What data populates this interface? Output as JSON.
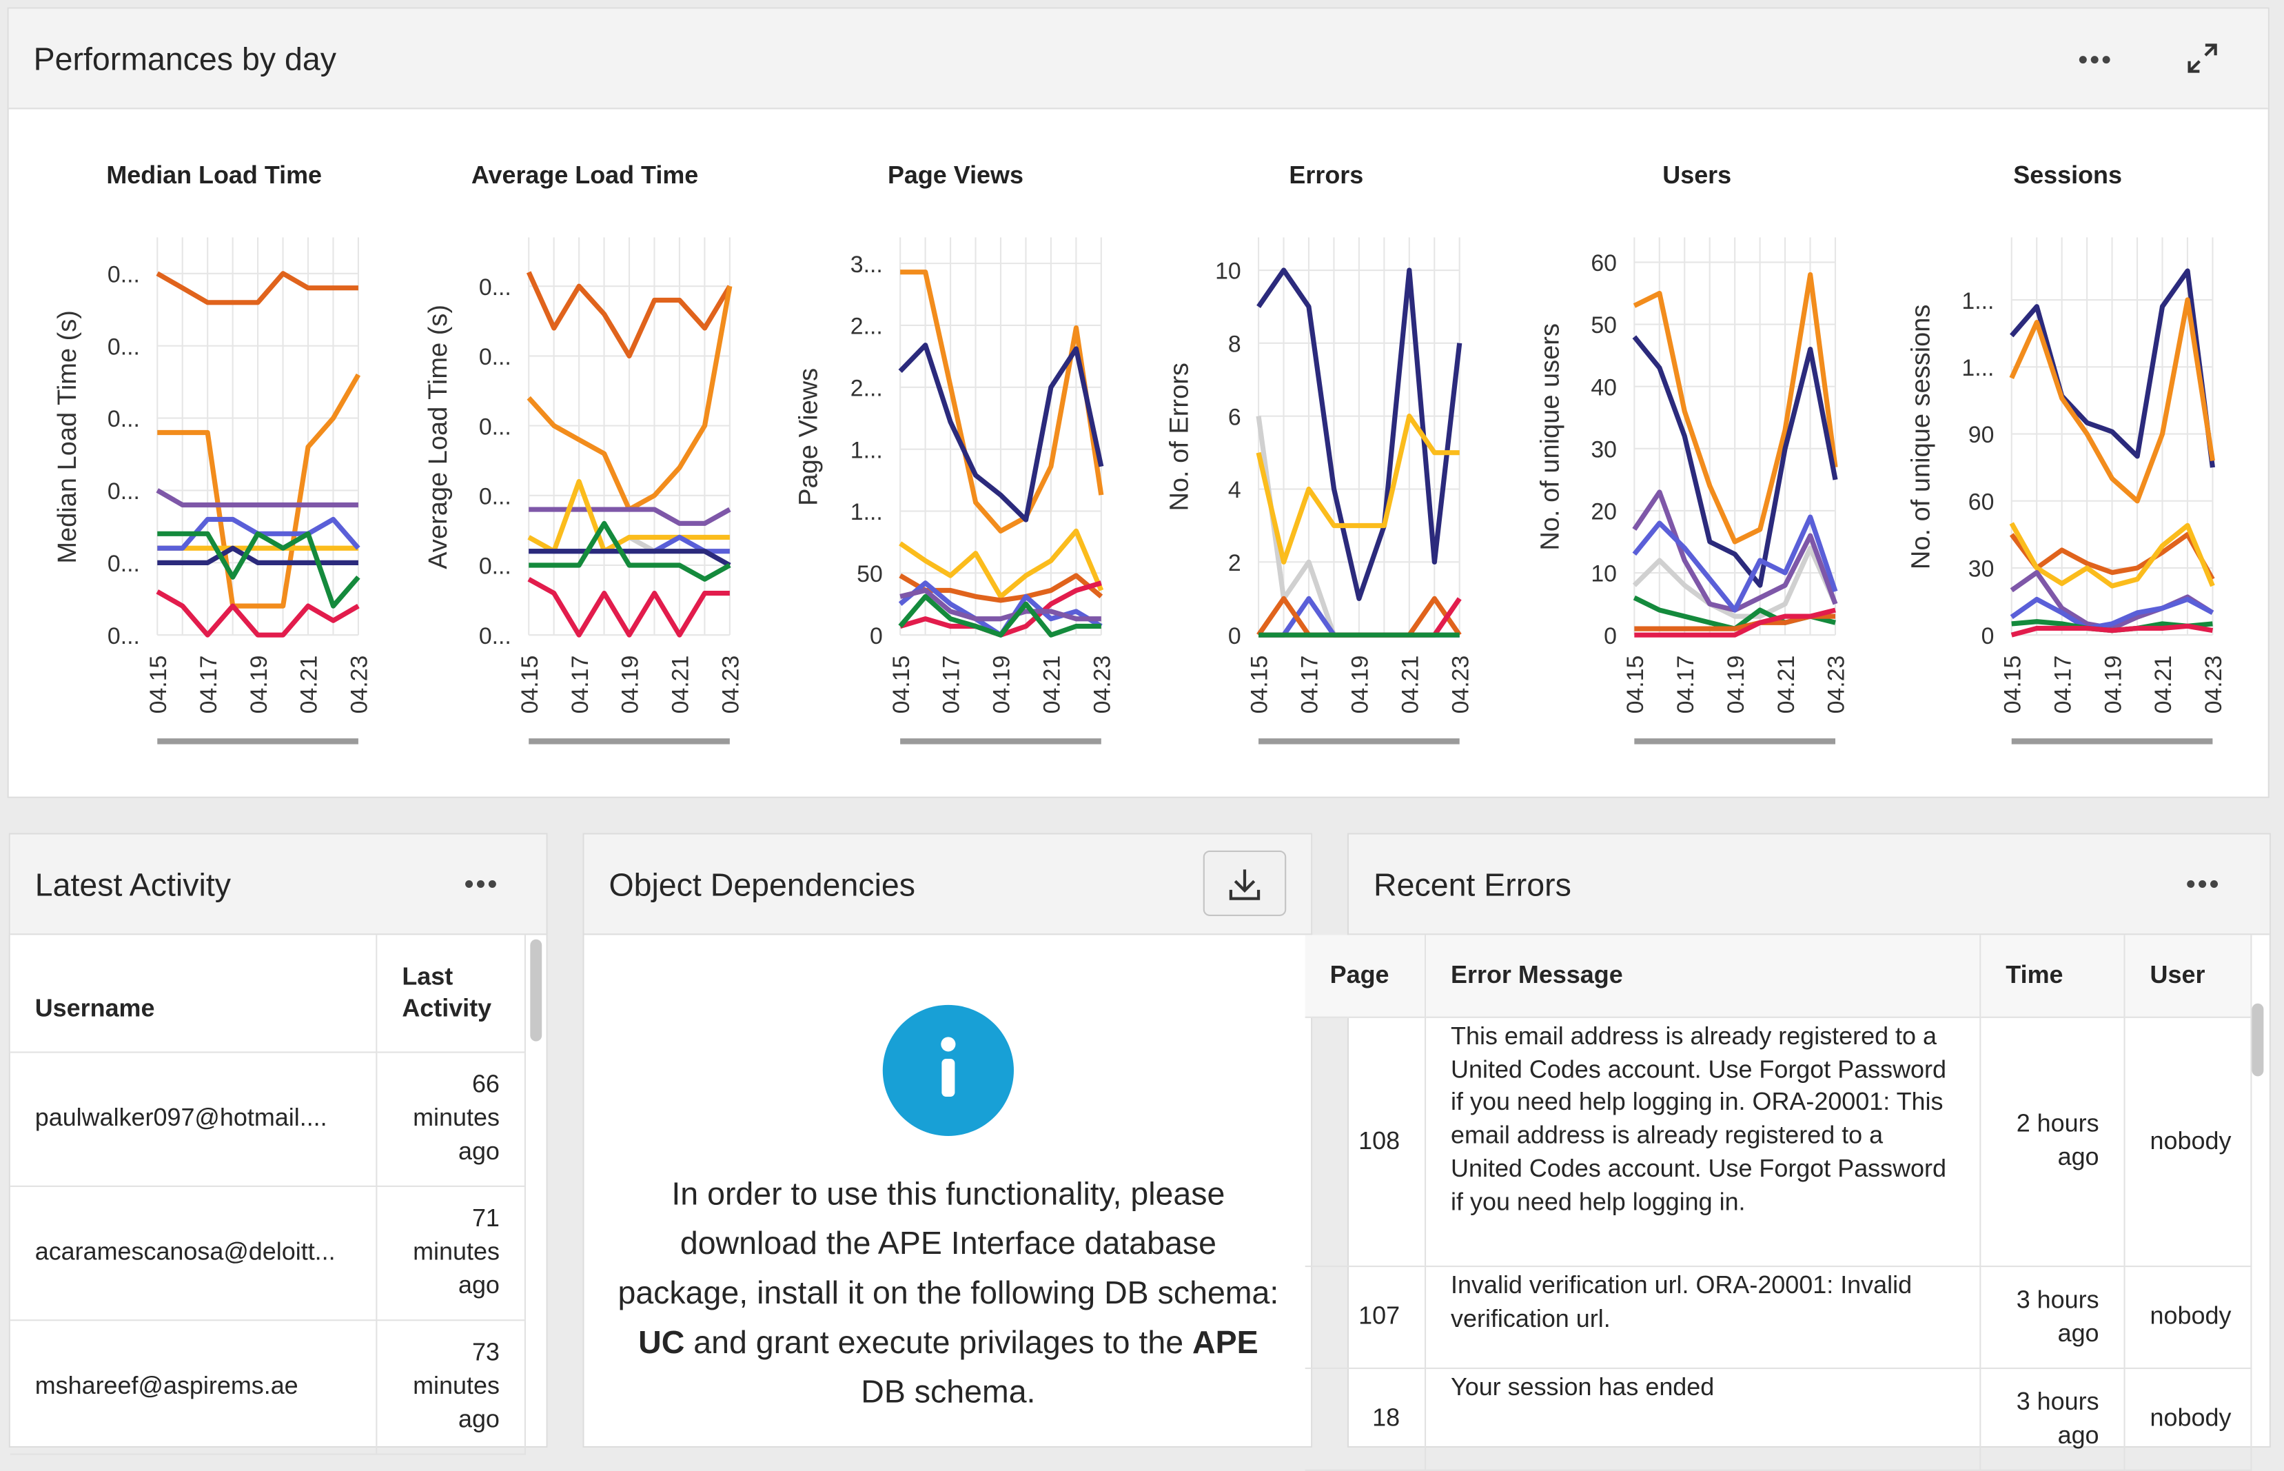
{
  "dashboard_title": "Performances by day",
  "chart_data": [
    {
      "type": "line",
      "title": "Median Load Time",
      "y_label": "Median Load Time (s)",
      "categories": [
        "04.15",
        null,
        "04.17",
        null,
        "04.19",
        null,
        "04.21",
        null,
        "04.23"
      ],
      "ylim": [
        0.1,
        0.65
      ],
      "yticks": [
        {
          "value": 0.1,
          "label": "0..."
        },
        {
          "value": 0.2,
          "label": "0..."
        },
        {
          "value": 0.3,
          "label": "0..."
        },
        {
          "value": 0.4,
          "label": "0..."
        },
        {
          "value": 0.5,
          "label": "0..."
        },
        {
          "value": 0.6,
          "label": "0..."
        }
      ],
      "grid": true,
      "series": [
        {
          "color": "#e0631c",
          "values": [
            0.6,
            0.58,
            0.56,
            0.56,
            0.56,
            0.6,
            0.58,
            0.58,
            0.58
          ]
        },
        {
          "color": "#f28c1c",
          "values": [
            0.38,
            0.38,
            0.38,
            0.14,
            0.14,
            0.14,
            0.36,
            0.4,
            0.46
          ]
        },
        {
          "color": "#7e57a8",
          "values": [
            0.3,
            0.28,
            0.28,
            0.28,
            0.28,
            0.28,
            0.28,
            0.28,
            0.28
          ]
        },
        {
          "color": "#fbbc1c",
          "values": [
            0.22,
            0.22,
            0.22,
            0.22,
            0.22,
            0.22,
            0.22,
            0.22,
            0.22
          ]
        },
        {
          "color": "#5a5fd8",
          "values": [
            0.22,
            0.22,
            0.26,
            0.26,
            0.24,
            0.24,
            0.24,
            0.26,
            0.22
          ]
        },
        {
          "color": "#2b2a7c",
          "values": [
            0.2,
            0.2,
            0.2,
            0.22,
            0.2,
            0.2,
            0.2,
            0.2,
            0.2
          ]
        },
        {
          "color": "#148a3c",
          "values": [
            0.24,
            0.24,
            0.24,
            0.18,
            0.24,
            0.22,
            0.24,
            0.14,
            0.18
          ]
        },
        {
          "color": "#e21c4c",
          "values": [
            0.16,
            0.14,
            0.1,
            0.14,
            0.1,
            0.1,
            0.14,
            0.12,
            0.14
          ]
        }
      ]
    },
    {
      "type": "line",
      "title": "Average Load Time",
      "y_label": "Average Load Time (s)",
      "categories": [
        "04.15",
        null,
        "04.17",
        null,
        "04.19",
        null,
        "04.21",
        null,
        "04.23"
      ],
      "ylim": [
        0.1,
        0.67
      ],
      "yticks": [
        {
          "value": 0.1,
          "label": "0..."
        },
        {
          "value": 0.2,
          "label": "0..."
        },
        {
          "value": 0.3,
          "label": "0..."
        },
        {
          "value": 0.4,
          "label": "0..."
        },
        {
          "value": 0.5,
          "label": "0..."
        },
        {
          "value": 0.6,
          "label": "0..."
        }
      ],
      "grid": true,
      "series": [
        {
          "color": "#d0d0d0",
          "values": [
            0.24,
            0.22,
            0.22,
            0.22,
            0.24,
            0.22,
            0.22,
            0.22,
            0.22
          ]
        },
        {
          "color": "#e0631c",
          "values": [
            0.62,
            0.54,
            0.6,
            0.56,
            0.5,
            0.58,
            0.58,
            0.54,
            0.6
          ]
        },
        {
          "color": "#f28c1c",
          "values": [
            0.44,
            0.4,
            0.38,
            0.36,
            0.28,
            0.3,
            0.34,
            0.4,
            0.6
          ]
        },
        {
          "color": "#7e57a8",
          "values": [
            0.28,
            0.28,
            0.28,
            0.28,
            0.28,
            0.28,
            0.26,
            0.26,
            0.28
          ]
        },
        {
          "color": "#fbbc1c",
          "values": [
            0.24,
            0.22,
            0.32,
            0.22,
            0.24,
            0.24,
            0.24,
            0.24,
            0.24
          ]
        },
        {
          "color": "#5a5fd8",
          "values": [
            0.22,
            0.22,
            0.22,
            0.22,
            0.22,
            0.22,
            0.24,
            0.22,
            0.22
          ]
        },
        {
          "color": "#2b2a7c",
          "values": [
            0.22,
            0.22,
            0.22,
            0.22,
            0.22,
            0.22,
            0.22,
            0.22,
            0.2
          ]
        },
        {
          "color": "#148a3c",
          "values": [
            0.2,
            0.2,
            0.2,
            0.26,
            0.2,
            0.2,
            0.2,
            0.18,
            0.2
          ]
        },
        {
          "color": "#e21c4c",
          "values": [
            0.18,
            0.16,
            0.1,
            0.16,
            0.1,
            0.16,
            0.1,
            0.16,
            0.16
          ]
        }
      ]
    },
    {
      "type": "line",
      "title": "Page Views",
      "y_label": "Page Views",
      "categories": [
        "04.15",
        null,
        "04.17",
        null,
        "04.19",
        null,
        "04.21",
        null,
        "04.23"
      ],
      "ylim": [
        0,
        321
      ],
      "yticks": [
        0,
        50,
        {
          "value": 100,
          "label": "1..."
        },
        {
          "value": 150,
          "label": "1..."
        },
        {
          "value": 200,
          "label": "2..."
        },
        {
          "value": 250,
          "label": "2..."
        },
        {
          "value": 300,
          "label": "3..."
        }
      ],
      "grid": true,
      "series": [
        {
          "color": "#f28c1c",
          "values": [
            293,
            293,
            201,
            107,
            84,
            95,
            136,
            248,
            113
          ]
        },
        {
          "color": "#2b2a7c",
          "values": [
            213,
            234,
            172,
            129,
            113,
            93,
            200,
            231,
            136
          ]
        },
        {
          "color": "#fbbc1c",
          "values": [
            74,
            60,
            48,
            66,
            31,
            48,
            60,
            84,
            36
          ]
        },
        {
          "color": "#e0631c",
          "values": [
            48,
            36,
            36,
            31,
            28,
            31,
            36,
            48,
            31
          ]
        },
        {
          "color": "#e21c4c",
          "values": [
            7,
            13,
            7,
            7,
            0,
            7,
            25,
            36,
            42
          ]
        },
        {
          "color": "#5a5fd8",
          "values": [
            25,
            42,
            25,
            13,
            0,
            31,
            13,
            19,
            7
          ]
        },
        {
          "color": "#7e57a8",
          "values": [
            31,
            36,
            19,
            13,
            13,
            19,
            19,
            13,
            13
          ]
        },
        {
          "color": "#148a3c",
          "values": [
            7,
            31,
            13,
            7,
            0,
            25,
            0,
            7,
            7
          ]
        }
      ]
    },
    {
      "type": "line",
      "title": "Errors",
      "y_label": "No. of Errors",
      "categories": [
        "04.15",
        null,
        "04.17",
        null,
        "04.19",
        null,
        "04.21",
        null,
        "04.23"
      ],
      "ylim": [
        0,
        10.9
      ],
      "yticks": [
        0,
        2,
        4,
        6,
        8,
        10
      ],
      "grid": true,
      "series": [
        {
          "color": "#d0d0d0",
          "values": [
            6,
            1,
            2,
            0,
            0,
            0,
            0,
            0,
            0
          ]
        },
        {
          "color": "#2b2a7c",
          "values": [
            9,
            10,
            9,
            4,
            1,
            3,
            10,
            2,
            8
          ]
        },
        {
          "color": "#fbbc1c",
          "values": [
            5,
            2,
            4,
            3,
            3,
            3,
            6,
            5,
            5
          ]
        },
        {
          "color": "#5a5fd8",
          "values": [
            0,
            0,
            1,
            0,
            0,
            0,
            0,
            0,
            0
          ]
        },
        {
          "color": "#e0631c",
          "values": [
            0,
            1,
            0,
            0,
            0,
            0,
            0,
            1,
            0
          ]
        },
        {
          "color": "#e21c4c",
          "values": [
            0,
            0,
            0,
            0,
            0,
            0,
            0,
            0,
            1
          ]
        },
        {
          "color": "#148a3c",
          "values": [
            0,
            0,
            0,
            0,
            0,
            0,
            0,
            0,
            0
          ]
        }
      ]
    },
    {
      "type": "line",
      "title": "Users",
      "y_label": "No. of unique users",
      "categories": [
        "04.15",
        null,
        "04.17",
        null,
        "04.19",
        null,
        "04.21",
        null,
        "04.23"
      ],
      "ylim": [
        0,
        64
      ],
      "yticks": [
        0,
        10,
        20,
        30,
        40,
        50,
        60
      ],
      "grid": true,
      "series": [
        {
          "color": "#d0d0d0",
          "values": [
            8,
            12,
            8,
            5,
            3,
            3,
            5,
            14,
            5
          ]
        },
        {
          "color": "#f28c1c",
          "values": [
            53,
            55,
            36,
            24,
            15,
            17,
            33,
            58,
            27
          ]
        },
        {
          "color": "#2b2a7c",
          "values": [
            48,
            43,
            32,
            15,
            13,
            8,
            30,
            46,
            25
          ]
        },
        {
          "color": "#7e57a8",
          "values": [
            17,
            23,
            12,
            5,
            4,
            6,
            8,
            16,
            5
          ]
        },
        {
          "color": "#5a5fd8",
          "values": [
            13,
            18,
            14,
            9,
            4,
            12,
            10,
            19,
            7
          ]
        },
        {
          "color": "#148a3c",
          "values": [
            6,
            4,
            3,
            2,
            1,
            4,
            2,
            3,
            2
          ]
        },
        {
          "color": "#e0631c",
          "values": [
            1,
            1,
            1,
            1,
            1,
            2,
            2,
            3,
            3
          ]
        },
        {
          "color": "#e21c4c",
          "values": [
            0,
            0,
            0,
            0,
            0,
            2,
            3,
            3,
            4
          ]
        }
      ]
    },
    {
      "type": "line",
      "title": "Sessions",
      "y_label": "No. of unique sessions",
      "categories": [
        "04.15",
        null,
        "04.17",
        null,
        "04.19",
        null,
        "04.21",
        null,
        "04.23"
      ],
      "ylim": [
        0,
        178
      ],
      "yticks": [
        0,
        30,
        60,
        90,
        {
          "value": 120,
          "label": "1..."
        },
        {
          "value": 150,
          "label": "1..."
        }
      ],
      "grid": true,
      "series": [
        {
          "color": "#2b2a7c",
          "values": [
            134,
            147,
            107,
            95,
            91,
            80,
            147,
            163,
            75
          ]
        },
        {
          "color": "#f28c1c",
          "values": [
            115,
            140,
            106,
            90,
            70,
            60,
            90,
            150,
            78
          ]
        },
        {
          "color": "#e0631c",
          "values": [
            45,
            30,
            38,
            32,
            28,
            30,
            37,
            45,
            25
          ]
        },
        {
          "color": "#fbbc1c",
          "values": [
            50,
            30,
            23,
            30,
            22,
            25,
            40,
            49,
            22
          ]
        },
        {
          "color": "#7e57a8",
          "values": [
            20,
            28,
            12,
            5,
            3,
            8,
            12,
            17,
            10
          ]
        },
        {
          "color": "#5a5fd8",
          "values": [
            8,
            16,
            10,
            3,
            5,
            10,
            12,
            16,
            10
          ]
        },
        {
          "color": "#148a3c",
          "values": [
            5,
            6,
            5,
            3,
            2,
            3,
            5,
            4,
            5
          ]
        },
        {
          "color": "#e21c4c",
          "values": [
            0,
            3,
            3,
            3,
            2,
            3,
            3,
            4,
            2
          ]
        }
      ]
    }
  ],
  "latest_activity": {
    "title": "Latest Activity",
    "columns": [
      "Username",
      "Last Activity"
    ],
    "rows": [
      [
        "paulwalker097@hotmail....",
        "66 minutes ago"
      ],
      [
        "acaramescanosa@deloitt...",
        "71 minutes ago"
      ],
      [
        "mshareef@aspirems.ae",
        "73 minutes ago"
      ]
    ]
  },
  "object_dependencies": {
    "title": "Object Dependencies",
    "message": [
      "In order to use this functionality, please download the APE Interface database package, install it on the following DB schema: ",
      "UC",
      " and grant execute privilages to the ",
      "APE",
      " DB schema."
    ]
  },
  "recent_errors": {
    "title": "Recent Errors",
    "columns": [
      "Page",
      "Error Message",
      "Time",
      "User"
    ],
    "rows": [
      [
        "108",
        "This email address is already registered to a United Codes account. Use Forgot Password if you need help logging in. ORA-20001: This email address is already registered to a United Codes account. Use Forgot Password if you need help logging in.",
        "2 hours ago",
        "nobody"
      ],
      [
        "107",
        "Invalid verification url. ORA-20001: Invalid verification url.",
        "3 hours ago",
        "nobody"
      ],
      [
        "18",
        "Your session has ended",
        "3 hours ago",
        "nobody"
      ]
    ]
  }
}
